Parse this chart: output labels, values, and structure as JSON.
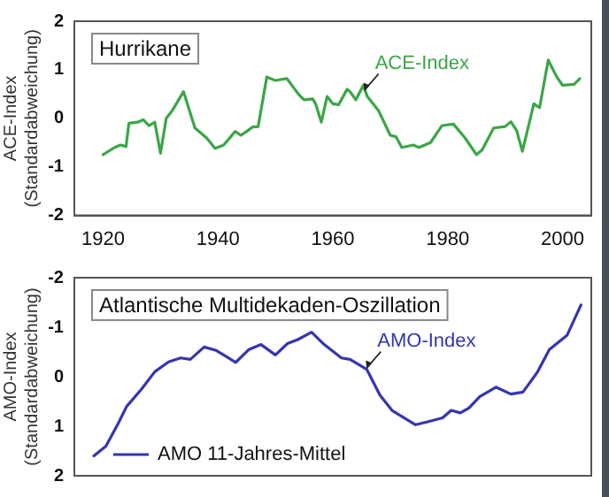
{
  "chart_data": [
    {
      "type": "line",
      "title": "Hurrikane",
      "ylabel": "ACE-Index\n(Standardabweichung)",
      "xlim": [
        1915,
        2005
      ],
      "xticks": [
        1920,
        1940,
        1960,
        1980,
        2000
      ],
      "ylim": [
        -2,
        2
      ],
      "yticks": [
        -2,
        -1,
        0,
        1,
        2
      ],
      "grid": false,
      "legend": false,
      "marker": "none",
      "line_style": "solid",
      "annotations": [
        {
          "text": "ACE-Index",
          "x": 1965.5,
          "y": 0.55
        }
      ],
      "series": [
        {
          "color": "#3aa646",
          "x": [
            1920,
            1922,
            1923,
            1924,
            1924.5,
            1926,
            1927,
            1928,
            1929,
            1930,
            1931,
            1932,
            1934,
            1936,
            1938,
            1939.5,
            1941,
            1943,
            1944,
            1945,
            1946,
            1947,
            1948.5,
            1950,
            1952,
            1954,
            1955,
            1956.5,
            1957,
            1958,
            1959,
            1960,
            1961,
            1962.5,
            1963,
            1964,
            1965.3,
            1966,
            1968,
            1970,
            1971,
            1972,
            1974,
            1975,
            1977,
            1979,
            1981,
            1983,
            1985,
            1986,
            1988,
            1990,
            1991,
            1992,
            1993,
            1995,
            1996,
            1997.5,
            1999,
            2000,
            2002,
            2003
          ],
          "values": [
            -0.75,
            -0.6,
            -0.55,
            -0.58,
            -0.1,
            -0.08,
            -0.03,
            -0.15,
            -0.08,
            -0.72,
            0.0,
            0.15,
            0.55,
            -0.2,
            -0.4,
            -0.62,
            -0.55,
            -0.27,
            -0.35,
            -0.27,
            -0.18,
            -0.17,
            0.85,
            0.78,
            0.82,
            0.5,
            0.38,
            0.4,
            0.3,
            -0.08,
            0.45,
            0.3,
            0.28,
            0.6,
            0.55,
            0.38,
            0.68,
            0.45,
            0.15,
            -0.35,
            -0.38,
            -0.6,
            -0.55,
            -0.6,
            -0.5,
            -0.15,
            -0.12,
            -0.4,
            -0.75,
            -0.65,
            -0.2,
            -0.17,
            -0.07,
            -0.25,
            -0.68,
            0.3,
            0.22,
            1.2,
            0.85,
            0.68,
            0.7,
            0.82
          ]
        }
      ]
    },
    {
      "type": "line",
      "title": "Atlantische Multidekaden-Oszillation",
      "ylabel": "AMO-Index\n(Standardabweichung)",
      "xlim": [
        1915,
        2005
      ],
      "xticks": [
        1920,
        1940,
        1960,
        1980,
        2000
      ],
      "ylim": [
        2,
        -2
      ],
      "yticks": [
        -2,
        -1,
        0,
        1,
        2
      ],
      "tick_labels": "y",
      "grid": false,
      "legend": "bottom left",
      "marker": "none",
      "line_style": "solid",
      "annotations": [
        {
          "text": "AMO-Index",
          "x": 1965.9,
          "y": -0.15
        }
      ],
      "series": [
        {
          "name": "AMO 11-Jahres-Mittel",
          "color": "#3535b0",
          "x": [
            1918.4,
            1920.5,
            1922.6,
            1924.1,
            1926.7,
            1929,
            1931.4,
            1933.5,
            1935.2,
            1937.6,
            1939.7,
            1943.1,
            1945.4,
            1947.5,
            1950,
            1952.1,
            1953.9,
            1956.3,
            1958.3,
            1961.5,
            1963,
            1965.9,
            1968.2,
            1970.3,
            1974.4,
            1976.5,
            1979.1,
            1980.6,
            1982.2,
            1983.7,
            1985.6,
            1988.4,
            1991,
            1993.1,
            1995.6,
            1997.7,
            2000.8,
            2003.2
          ],
          "values": [
            1.6,
            1.4,
            0.95,
            0.6,
            0.25,
            -0.1,
            -0.3,
            -0.38,
            -0.35,
            -0.6,
            -0.53,
            -0.29,
            -0.55,
            -0.65,
            -0.44,
            -0.67,
            -0.75,
            -0.9,
            -0.67,
            -0.38,
            -0.35,
            -0.15,
            0.37,
            0.68,
            0.97,
            0.91,
            0.83,
            0.68,
            0.73,
            0.63,
            0.4,
            0.21,
            0.35,
            0.31,
            -0.09,
            -0.55,
            -0.84,
            -1.45
          ]
        }
      ]
    }
  ]
}
